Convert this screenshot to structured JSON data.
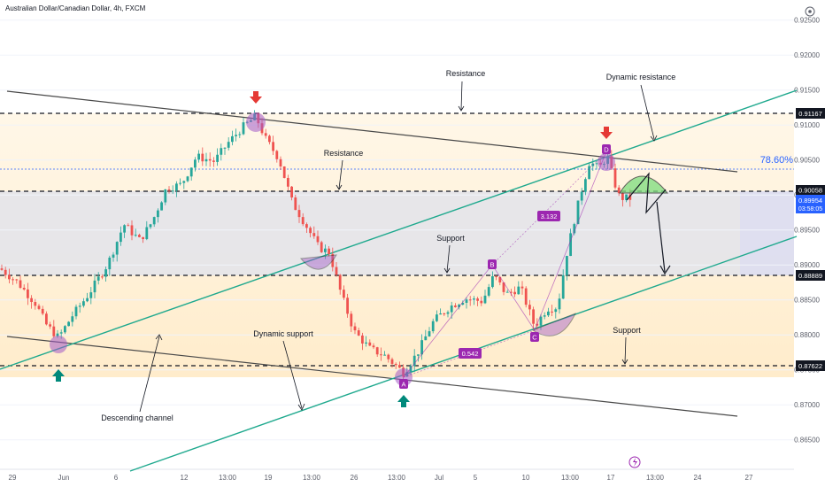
{
  "header": {
    "title": "Australian Dollar/Canadian Dollar, 4h, FXCM"
  },
  "chart_data": {
    "type": "candlestick",
    "symbol": "AUDCAD",
    "timeframe": "4h",
    "ylim": [
      0.8625,
      0.924
    ],
    "y_ticks": [
      "0.92500",
      "0.92000",
      "0.91500",
      "0.91000",
      "0.90500",
      "0.90000",
      "0.89500",
      "0.89000",
      "0.88500",
      "0.88000",
      "0.87500",
      "0.87000",
      "0.86500"
    ],
    "x_ticks": [
      "29",
      "Jun",
      "6",
      "12",
      "13:00",
      "19",
      "13:00",
      "26",
      "13:00",
      "Jul",
      "5",
      "10",
      "13:00",
      "17",
      "13:00",
      "24",
      "27"
    ],
    "price_path": [
      {
        "t": 0,
        "p": 0.8895
      },
      {
        "t": 20,
        "p": 0.8875
      },
      {
        "t": 40,
        "p": 0.8845
      },
      {
        "t": 52,
        "p": 0.8815
      },
      {
        "t": 66,
        "p": 0.8796
      },
      {
        "t": 82,
        "p": 0.8828
      },
      {
        "t": 100,
        "p": 0.8858
      },
      {
        "t": 122,
        "p": 0.8902
      },
      {
        "t": 140,
        "p": 0.8958
      },
      {
        "t": 158,
        "p": 0.8935
      },
      {
        "t": 172,
        "p": 0.8962
      },
      {
        "t": 188,
        "p": 0.901
      },
      {
        "t": 205,
        "p": 0.9015
      },
      {
        "t": 222,
        "p": 0.9055
      },
      {
        "t": 242,
        "p": 0.9048
      },
      {
        "t": 258,
        "p": 0.9075
      },
      {
        "t": 275,
        "p": 0.9098
      },
      {
        "t": 289,
        "p": 0.9112
      },
      {
        "t": 300,
        "p": 0.908
      },
      {
        "t": 315,
        "p": 0.9052
      },
      {
        "t": 330,
        "p": 0.899
      },
      {
        "t": 345,
        "p": 0.8958
      },
      {
        "t": 360,
        "p": 0.8925
      },
      {
        "t": 372,
        "p": 0.8918
      },
      {
        "t": 385,
        "p": 0.886
      },
      {
        "t": 400,
        "p": 0.8805
      },
      {
        "t": 418,
        "p": 0.878
      },
      {
        "t": 435,
        "p": 0.877
      },
      {
        "t": 456,
        "p": 0.8746
      },
      {
        "t": 472,
        "p": 0.8775
      },
      {
        "t": 490,
        "p": 0.882
      },
      {
        "t": 508,
        "p": 0.884
      },
      {
        "t": 525,
        "p": 0.8852
      },
      {
        "t": 545,
        "p": 0.8848
      },
      {
        "t": 558,
        "p": 0.8885
      },
      {
        "t": 572,
        "p": 0.8858
      },
      {
        "t": 588,
        "p": 0.8868
      },
      {
        "t": 604,
        "p": 0.8812
      },
      {
        "t": 618,
        "p": 0.8838
      },
      {
        "t": 630,
        "p": 0.884
      },
      {
        "t": 640,
        "p": 0.8915
      },
      {
        "t": 648,
        "p": 0.896
      },
      {
        "t": 658,
        "p": 0.9012
      },
      {
        "t": 666,
        "p": 0.9048
      },
      {
        "t": 676,
        "p": 0.9038
      },
      {
        "t": 686,
        "p": 0.9055
      },
      {
        "t": 693,
        "p": 0.9022
      },
      {
        "t": 700,
        "p": 0.8996
      },
      {
        "t": 714,
        "p": 0.8995
      }
    ],
    "horizontal_levels": [
      {
        "label": "0.91167",
        "value": 0.91167
      },
      {
        "label": "0.90058",
        "value": 0.90058
      },
      {
        "label": "0.88889",
        "value": 0.88889
      },
      {
        "label": "0.87622",
        "value": 0.87622
      }
    ],
    "fib_level": {
      "label": "78.60%",
      "value": 0.9032
    },
    "current_price": {
      "label": "0.89954",
      "countdown": "03:58:05"
    },
    "pattern_points": [
      {
        "label": "A",
        "value": 0.8746
      },
      {
        "label": "B",
        "value": 0.8895
      },
      {
        "label": "C",
        "value": 0.881
      },
      {
        "label": "D",
        "value": 0.9048
      }
    ],
    "ratios": [
      "0.542",
      "3.132"
    ],
    "annotations": [
      "Resistance",
      "Resistance",
      "Dynamic resistance",
      "Support",
      "Support",
      "Dynamic support",
      "Descending channel"
    ]
  },
  "colors": {
    "up": "#26a69a",
    "down": "#ef5350",
    "channel": "#4a4a4a",
    "trend": "#1fa98e",
    "pattern": "#9c27b0",
    "fib": "#2962ff",
    "arrow_down": "#e53935",
    "arrow_up": "#00897b",
    "zone_orange": "#fff3e0",
    "zone_gray": "#e7e7ee"
  }
}
